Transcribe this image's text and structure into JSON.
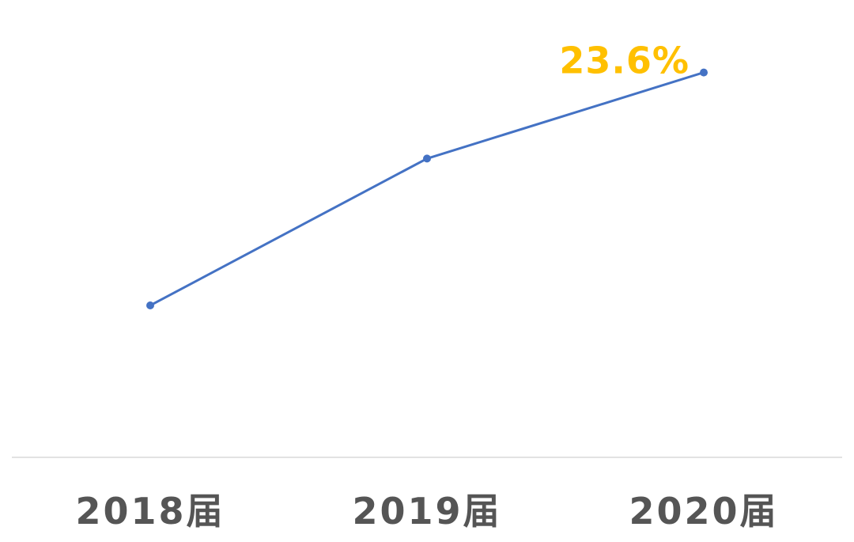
{
  "chart_data": {
    "type": "line",
    "title": "",
    "xlabel": "",
    "ylabel": "",
    "categories": [
      "2018届",
      "2019届",
      "2020届"
    ],
    "series": [
      {
        "values": [
          19.0,
          21.9,
          23.6
        ],
        "data_labels": [
          "",
          "",
          "23.6%"
        ],
        "color": "#4472C4"
      }
    ],
    "ylim": [
      16.0,
      24.0
    ],
    "grid": false,
    "legend": "none",
    "label_color": "#FFC000",
    "axis_color": "#D9D9D9",
    "tick_color": "#555555"
  }
}
